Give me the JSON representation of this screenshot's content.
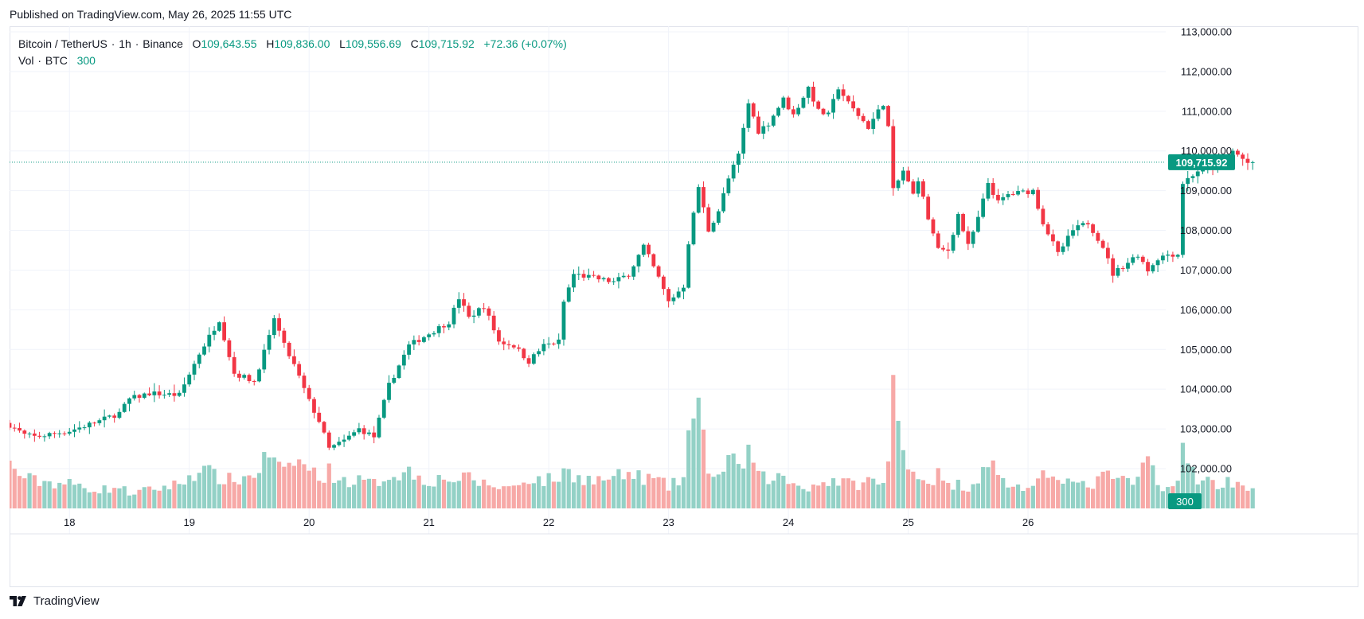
{
  "published": "Published on TradingView.com, May 26, 2025 11:55 UTC",
  "legend": {
    "symbol": "Bitcoin / TetherUS",
    "interval": "1h",
    "exchange": "Binance",
    "open_label": "O",
    "open": "109,643.55",
    "high_label": "H",
    "high": "109,836.00",
    "low_label": "L",
    "low": "109,556.69",
    "close_label": "C",
    "close": "109,715.92",
    "change": "+72.36 (+0.07%)",
    "vol_label": "Vol",
    "vol_unit": "BTC",
    "vol_value": "300"
  },
  "brand": "TradingView",
  "colors": {
    "up": "#089981",
    "down": "#f23645",
    "up_vol": "#93d1c6",
    "down_vol": "#f7a9a7"
  },
  "chart_data": {
    "type": "candlestick",
    "interval": "1h",
    "start": "2025-05-17 12:00 UTC",
    "ylim": [
      102000,
      113000
    ],
    "y_ticks": [
      "113,000.00",
      "112,000.00",
      "111,000.00",
      "110,000.00",
      "109,000.00",
      "108,000.00",
      "107,000.00",
      "106,000.00",
      "105,000.00",
      "104,000.00",
      "103,000.00",
      "102,000.00"
    ],
    "x_ticks": [
      {
        "label": "18",
        "time": "2025-05-18 00:00"
      },
      {
        "label": "19",
        "time": "2025-05-19 00:00"
      },
      {
        "label": "20",
        "time": "2025-05-20 00:00"
      },
      {
        "label": "21",
        "time": "2025-05-21 00:00"
      },
      {
        "label": "22",
        "time": "2025-05-22 00:00"
      },
      {
        "label": "23",
        "time": "2025-05-23 00:00"
      },
      {
        "label": "24",
        "time": "2025-05-24 00:00"
      },
      {
        "label": "25",
        "time": "2025-05-25 00:00"
      },
      {
        "label": "26",
        "time": "2025-05-26 00:00"
      }
    ],
    "last_price": 109715.92,
    "last_price_label": "109,715.92",
    "last_volume_label": "300",
    "keyframes": [
      [
        0,
        103100,
        1400
      ],
      [
        3,
        102850,
        1000
      ],
      [
        5,
        102800,
        900
      ],
      [
        12,
        102950,
        800
      ],
      [
        18,
        103200,
        600
      ],
      [
        22,
        103400,
        700
      ],
      [
        24,
        103750,
        500
      ],
      [
        28,
        103900,
        600
      ],
      [
        34,
        103850,
        800
      ],
      [
        38,
        104900,
        1300
      ],
      [
        42,
        105750,
        1000
      ],
      [
        45,
        104400,
        900
      ],
      [
        49,
        104200,
        1100
      ],
      [
        52,
        105300,
        1800
      ],
      [
        53,
        105800,
        1500
      ],
      [
        55,
        105100,
        1100
      ],
      [
        57,
        104600,
        1600
      ],
      [
        60,
        103700,
        1300
      ],
      [
        62,
        103200,
        1000
      ],
      [
        64,
        102500,
        1200
      ],
      [
        67,
        102700,
        900
      ],
      [
        70,
        103000,
        900
      ],
      [
        73,
        102800,
        800
      ],
      [
        76,
        104100,
        1100
      ],
      [
        80,
        105100,
        1200
      ],
      [
        84,
        105400,
        900
      ],
      [
        88,
        105700,
        1000
      ],
      [
        90,
        106300,
        900
      ],
      [
        92,
        105800,
        1000
      ],
      [
        95,
        106100,
        800
      ],
      [
        98,
        105200,
        700
      ],
      [
        101,
        105100,
        700
      ],
      [
        104,
        104700,
        1000
      ],
      [
        107,
        105100,
        900
      ],
      [
        110,
        105200,
        1000
      ],
      [
        111,
        106200,
        1200
      ],
      [
        113,
        106900,
        1100
      ],
      [
        117,
        106800,
        900
      ],
      [
        121,
        106700,
        1000
      ],
      [
        124,
        106900,
        1100
      ],
      [
        127,
        107600,
        1000
      ],
      [
        130,
        106800,
        900
      ],
      [
        132,
        106200,
        700
      ],
      [
        135,
        106600,
        1000
      ],
      [
        136,
        107700,
        2500
      ],
      [
        138,
        109100,
        3000
      ],
      [
        140,
        108000,
        1400
      ],
      [
        142,
        108500,
        1000
      ],
      [
        144,
        109300,
        1700
      ],
      [
        146,
        109900,
        1200
      ],
      [
        148,
        111200,
        1900
      ],
      [
        150,
        110500,
        1000
      ],
      [
        152,
        110700,
        1000
      ],
      [
        155,
        111300,
        1000
      ],
      [
        157,
        110900,
        800
      ],
      [
        160,
        111600,
        700
      ],
      [
        162,
        111000,
        800
      ],
      [
        164,
        110900,
        900
      ],
      [
        166,
        111600,
        900
      ],
      [
        168,
        111200,
        800
      ],
      [
        170,
        110900,
        800
      ],
      [
        172,
        110600,
        900
      ],
      [
        175,
        111200,
        800
      ],
      [
        176,
        110600,
        1400
      ],
      [
        177,
        109000,
        3900
      ],
      [
        179,
        109500,
        1900
      ],
      [
        181,
        108900,
        1400
      ],
      [
        182,
        109300,
        1000
      ],
      [
        184,
        108300,
        900
      ],
      [
        186,
        107500,
        1100
      ],
      [
        188,
        107500,
        700
      ],
      [
        190,
        108400,
        800
      ],
      [
        192,
        107600,
        700
      ],
      [
        194,
        108300,
        1000
      ],
      [
        196,
        109200,
        1700
      ],
      [
        198,
        108700,
        1000
      ],
      [
        200,
        108900,
        800
      ],
      [
        205,
        109000,
        600
      ],
      [
        207,
        108200,
        1000
      ],
      [
        210,
        107400,
        1200
      ],
      [
        213,
        108000,
        800
      ],
      [
        216,
        108200,
        700
      ],
      [
        219,
        107600,
        1000
      ],
      [
        221,
        106900,
        1100
      ],
      [
        224,
        107200,
        800
      ],
      [
        226,
        107400,
        900
      ],
      [
        228,
        107000,
        1700
      ],
      [
        230,
        107300,
        800
      ],
      [
        232,
        107400,
        700
      ],
      [
        234,
        107400,
        800
      ],
      [
        235,
        109200,
        1800
      ],
      [
        238,
        109500,
        1000
      ],
      [
        242,
        109600,
        800
      ],
      [
        245,
        110000,
        900
      ],
      [
        248,
        109700,
        700
      ],
      [
        249,
        109720,
        700
      ]
    ]
  }
}
